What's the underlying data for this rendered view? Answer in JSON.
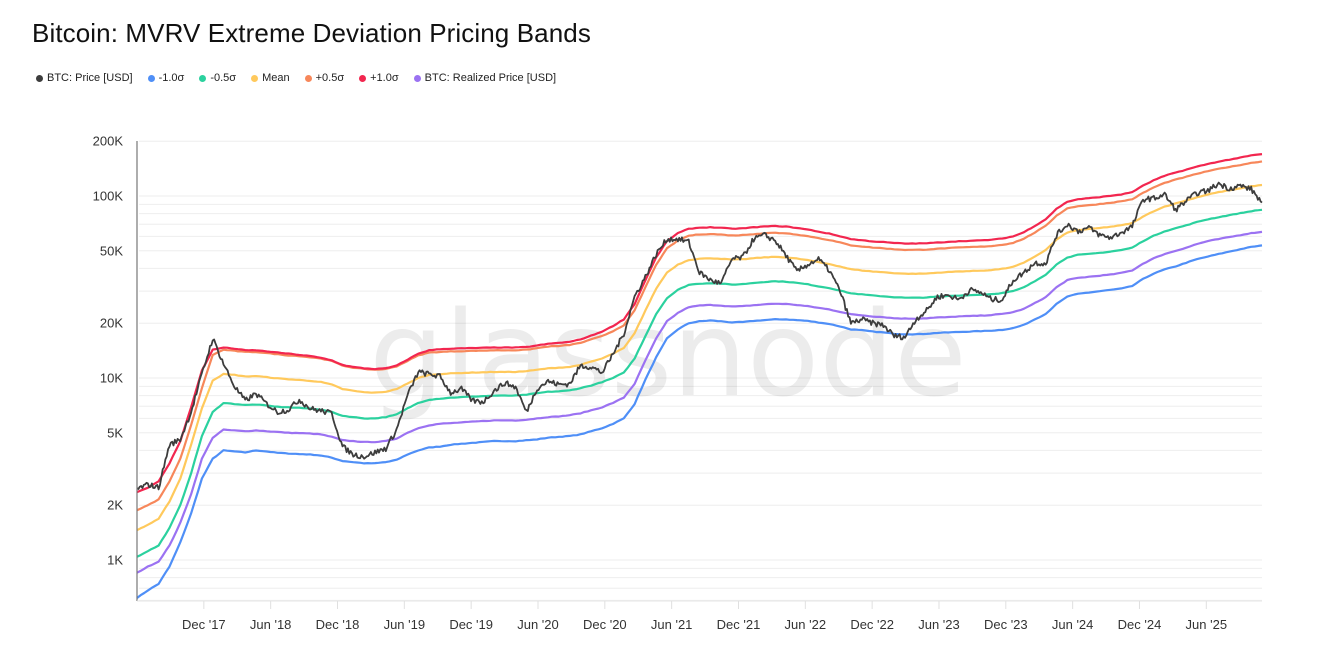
{
  "header": {
    "title": "Bitcoin: MVRV Extreme Deviation Pricing Bands"
  },
  "watermark": "glassnode",
  "chart_data": {
    "type": "line",
    "title": "Bitcoin: MVRV Extreme Deviation Pricing Bands",
    "xlabel": "",
    "ylabel": "",
    "yscale": "log",
    "ylim": [
      600,
      200000
    ],
    "grid": true,
    "legend_position": "top-left",
    "y_ticks": [
      {
        "value": 1000,
        "label": "1K"
      },
      {
        "value": 2000,
        "label": "2K"
      },
      {
        "value": 5000,
        "label": "5K"
      },
      {
        "value": 10000,
        "label": "10K"
      },
      {
        "value": 20000,
        "label": "20K"
      },
      {
        "value": 50000,
        "label": "50K"
      },
      {
        "value": 100000,
        "label": "100K"
      },
      {
        "value": 200000,
        "label": "200K"
      }
    ],
    "x_start": "2017-06",
    "x_end": "2025-11",
    "x_ticks": [
      {
        "month": "2017-12",
        "label": "Dec '17"
      },
      {
        "month": "2018-06",
        "label": "Jun '18"
      },
      {
        "month": "2018-12",
        "label": "Dec '18"
      },
      {
        "month": "2019-06",
        "label": "Jun '19"
      },
      {
        "month": "2019-12",
        "label": "Dec '19"
      },
      {
        "month": "2020-06",
        "label": "Jun '20"
      },
      {
        "month": "2020-12",
        "label": "Dec '20"
      },
      {
        "month": "2021-06",
        "label": "Jun '21"
      },
      {
        "month": "2021-12",
        "label": "Dec '21"
      },
      {
        "month": "2022-06",
        "label": "Jun '22"
      },
      {
        "month": "2022-12",
        "label": "Dec '22"
      },
      {
        "month": "2023-06",
        "label": "Jun '23"
      },
      {
        "month": "2023-12",
        "label": "Dec '23"
      },
      {
        "month": "2024-06",
        "label": "Jun '24"
      },
      {
        "month": "2024-12",
        "label": "Dec '24"
      },
      {
        "month": "2025-06",
        "label": "Jun '25"
      }
    ],
    "series": [
      {
        "name": "BTC: Price [USD]",
        "key": "price",
        "color": "#3d3d3d",
        "values": [
          2450,
          2600,
          2500,
          4300,
          4600,
          6500,
          10500,
          16500,
          12000,
          9000,
          7500,
          8200,
          7200,
          6500,
          6700,
          7600,
          6800,
          6600,
          6400,
          4200,
          3800,
          3700,
          3900,
          4100,
          5200,
          8000,
          10800,
          10500,
          10200,
          8300,
          8700,
          7500,
          7400,
          8500,
          9400,
          8900,
          6500,
          8800,
          9600,
          9200,
          9300,
          11700,
          11500,
          10700,
          13500,
          17500,
          28000,
          36000,
          48000,
          58000,
          58000,
          56000,
          38000,
          34500,
          33000,
          45000,
          46000,
          58000,
          61000,
          57000,
          47000,
          38500,
          42000,
          45000,
          39000,
          30000,
          20000,
          21000,
          20000,
          19500,
          17000,
          16800,
          21000,
          23500,
          28000,
          28500,
          27000,
          30500,
          29500,
          27000,
          27000,
          34500,
          38000,
          43000,
          42500,
          61000,
          70000,
          64000,
          67000,
          61000,
          59000,
          63000,
          68000,
          96000,
          97000,
          102000,
          84000,
          94000,
          104000,
          107000,
          117000,
          110000,
          114000,
          109000,
          92000
        ],
        "noise": 0.035
      },
      {
        "name": "-1.0σ",
        "key": "m1",
        "color": "#4f8ff7",
        "values": [
          620,
          680,
          740,
          920,
          1250,
          1800,
          2800,
          3600,
          4000,
          3950,
          3900,
          4000,
          3950,
          3880,
          3850,
          3820,
          3800,
          3750,
          3650,
          3500,
          3450,
          3400,
          3400,
          3450,
          3550,
          3800,
          4000,
          4150,
          4200,
          4300,
          4350,
          4400,
          4450,
          4500,
          4500,
          4500,
          4550,
          4600,
          4700,
          4750,
          4800,
          4900,
          5100,
          5300,
          5600,
          6000,
          7200,
          9800,
          13000,
          16500,
          18500,
          20000,
          20500,
          20700,
          20500,
          20200,
          20300,
          20600,
          20800,
          21000,
          21000,
          20800,
          20600,
          20200,
          19800,
          19200,
          18500,
          18300,
          18000,
          17800,
          17500,
          17400,
          17400,
          17500,
          17700,
          17800,
          17900,
          18000,
          18100,
          18200,
          18400,
          18800,
          19600,
          21000,
          22500,
          25500,
          28000,
          29000,
          29500,
          30000,
          30500,
          31000,
          32000,
          35000,
          37500,
          39500,
          41000,
          43000,
          45000,
          46500,
          48000,
          49500,
          51000,
          52500,
          53500
        ],
        "noise": 0.0
      },
      {
        "name": "BTC: Realized Price [USD]",
        "key": "rp",
        "color": "#9b72f2",
        "values": [
          850,
          920,
          980,
          1200,
          1600,
          2300,
          3600,
          4700,
          5200,
          5150,
          5100,
          5150,
          5100,
          5050,
          5000,
          4980,
          4950,
          4900,
          4750,
          4550,
          4500,
          4450,
          4450,
          4500,
          4650,
          5000,
          5300,
          5500,
          5600,
          5650,
          5700,
          5750,
          5800,
          5850,
          5850,
          5850,
          5900,
          6000,
          6100,
          6150,
          6250,
          6400,
          6650,
          6900,
          7300,
          7800,
          9300,
          12500,
          16500,
          20500,
          22800,
          24500,
          25000,
          25200,
          25000,
          24700,
          24800,
          25100,
          25400,
          25600,
          25500,
          25200,
          24800,
          24300,
          23800,
          23100,
          22400,
          22100,
          21800,
          21600,
          21300,
          21200,
          21200,
          21300,
          21500,
          21600,
          21800,
          21900,
          22000,
          22200,
          22500,
          23000,
          24000,
          25800,
          27800,
          31500,
          34500,
          35500,
          36000,
          36500,
          37000,
          37800,
          39000,
          42500,
          45500,
          48000,
          50000,
          52000,
          54500,
          56500,
          58000,
          59500,
          61000,
          62500,
          63500
        ],
        "noise": 0.0
      },
      {
        "name": "-0.5σ",
        "key": "m05",
        "color": "#2bd19e",
        "values": [
          1040,
          1120,
          1200,
          1500,
          2000,
          3000,
          4800,
          6500,
          7300,
          7200,
          7100,
          7150,
          7050,
          6950,
          6900,
          6850,
          6800,
          6700,
          6500,
          6200,
          6100,
          6000,
          6000,
          6100,
          6300,
          6800,
          7300,
          7600,
          7700,
          7800,
          7850,
          7900,
          7950,
          8000,
          8000,
          8000,
          8100,
          8250,
          8400,
          8450,
          8550,
          8800,
          9100,
          9500,
          10000,
          10700,
          12800,
          17000,
          22500,
          27500,
          30500,
          32500,
          33000,
          33200,
          33000,
          32600,
          32800,
          33300,
          33700,
          34000,
          33800,
          33300,
          32700,
          31900,
          31200,
          30200,
          29200,
          28800,
          28400,
          28100,
          27800,
          27600,
          27600,
          27700,
          28000,
          28200,
          28400,
          28500,
          28700,
          28900,
          29300,
          30000,
          31500,
          34000,
          37000,
          42000,
          46000,
          47500,
          48000,
          48700,
          49500,
          50500,
          52000,
          56500,
          60500,
          64000,
          66500,
          69000,
          72000,
          74500,
          76500,
          78500,
          80500,
          82500,
          84000
        ],
        "noise": 0.0
      },
      {
        "name": "Mean",
        "key": "mean",
        "color": "#ffc95c",
        "values": [
          1460,
          1560,
          1680,
          2100,
          2800,
          4300,
          6800,
          9700,
          10500,
          10400,
          10200,
          10250,
          10100,
          9950,
          9850,
          9750,
          9650,
          9500,
          9200,
          8700,
          8500,
          8350,
          8300,
          8400,
          8700,
          9300,
          10000,
          10400,
          10500,
          10600,
          10650,
          10700,
          10750,
          10800,
          10800,
          10800,
          10900,
          11100,
          11300,
          11400,
          11500,
          11800,
          12300,
          12800,
          13600,
          14600,
          17600,
          23500,
          31000,
          38000,
          42000,
          44500,
          45200,
          45500,
          45200,
          44700,
          44900,
          45500,
          46000,
          46300,
          46000,
          45300,
          44400,
          43300,
          42300,
          41000,
          39600,
          39000,
          38500,
          38100,
          37700,
          37400,
          37400,
          37500,
          37900,
          38200,
          38500,
          38700,
          38900,
          39200,
          39800,
          40800,
          43000,
          46500,
          50500,
          57500,
          63000,
          65000,
          65800,
          66700,
          67800,
          69000,
          71000,
          77000,
          82500,
          87500,
          91000,
          94500,
          98500,
          102000,
          105000,
          107500,
          110000,
          113000,
          115000
        ],
        "noise": 0.0
      },
      {
        "name": "+0.5σ",
        "key": "p05",
        "color": "#f7875a",
        "values": [
          1880,
          2000,
          2150,
          2700,
          3600,
          5500,
          8800,
          13400,
          14300,
          14100,
          13900,
          13900,
          13700,
          13500,
          13300,
          13200,
          13000,
          12800,
          12400,
          11700,
          11400,
          11200,
          11100,
          11200,
          11600,
          12400,
          13300,
          13800,
          13900,
          14000,
          14050,
          14100,
          14150,
          14200,
          14200,
          14200,
          14300,
          14600,
          14900,
          15000,
          15200,
          15600,
          16300,
          17000,
          18100,
          19500,
          23500,
          31500,
          42000,
          51500,
          57000,
          60500,
          61500,
          61800,
          61400,
          60700,
          61000,
          61800,
          62400,
          62800,
          62400,
          61400,
          60200,
          58700,
          57300,
          55500,
          53600,
          52800,
          52100,
          51600,
          51000,
          50600,
          50600,
          50800,
          51300,
          51700,
          52100,
          52400,
          52700,
          53100,
          53900,
          55300,
          58300,
          63000,
          68500,
          78000,
          85500,
          88000,
          89000,
          90300,
          91800,
          93500,
          96000,
          104000,
          111500,
          118000,
          123000,
          127500,
          132500,
          137000,
          141000,
          144500,
          148000,
          152000,
          155000
        ],
        "noise": 0.0
      },
      {
        "name": "+1.0σ",
        "key": "p1",
        "color": "#f2264f",
        "values": [
          2360,
          2500,
          2700,
          3400,
          4500,
          6900,
          11000,
          14300,
          14700,
          14500,
          14200,
          14200,
          14000,
          13800,
          13600,
          13400,
          13200,
          12900,
          12500,
          11800,
          11500,
          11300,
          11200,
          11300,
          11700,
          12600,
          13600,
          14200,
          14400,
          14500,
          14550,
          14600,
          14650,
          14700,
          14700,
          14700,
          14800,
          15100,
          15400,
          15600,
          15800,
          16300,
          17100,
          18000,
          19300,
          21000,
          25500,
          34500,
          46000,
          56500,
          62500,
          66000,
          67000,
          67300,
          66900,
          66100,
          66400,
          67300,
          68000,
          68400,
          67900,
          66800,
          65400,
          63700,
          62100,
          60100,
          58000,
          57100,
          56300,
          55800,
          55200,
          54800,
          54800,
          55000,
          55500,
          56000,
          56400,
          56700,
          57000,
          57500,
          58400,
          60000,
          63300,
          68500,
          74500,
          85000,
          93000,
          96000,
          97200,
          98600,
          100200,
          102000,
          105000,
          114000,
          122000,
          129000,
          134500,
          139500,
          145000,
          150000,
          154500,
          158500,
          162500,
          167000,
          170000
        ],
        "noise": 0.0
      }
    ]
  }
}
